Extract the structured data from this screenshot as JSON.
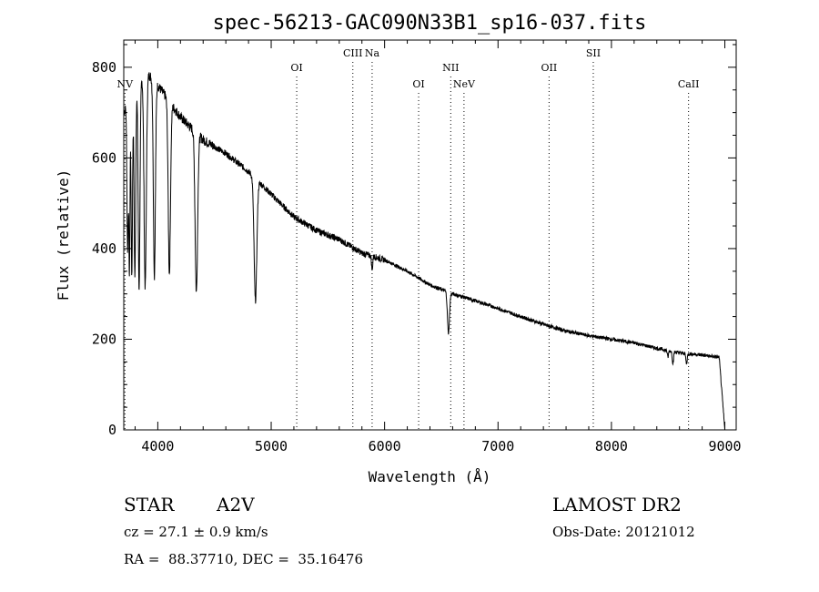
{
  "chart_data": {
    "type": "line",
    "title": "spec-56213-GAC090N33B1_sp16-037.fits",
    "xlabel": "Wavelength (Å)",
    "ylabel": "Flux (relative)",
    "xlim": [
      3700,
      9100
    ],
    "ylim": [
      0,
      860
    ],
    "xticks": [
      4000,
      5000,
      6000,
      7000,
      8000,
      9000
    ],
    "yticks": [
      0,
      200,
      400,
      600,
      800
    ],
    "continuum": {
      "x": [
        3700,
        3800,
        3900,
        4000,
        4200,
        4400,
        4600,
        4800,
        5000,
        5200,
        5400,
        5600,
        5800,
        6000,
        6200,
        6400,
        6600,
        6800,
        7000,
        7200,
        7400,
        7600,
        7800,
        8000,
        8200,
        8400,
        8600,
        8800,
        8950,
        9000
      ],
      "y": [
        700,
        760,
        790,
        760,
        690,
        640,
        610,
        570,
        520,
        470,
        440,
        420,
        390,
        375,
        350,
        320,
        300,
        285,
        268,
        250,
        233,
        218,
        208,
        200,
        192,
        180,
        170,
        165,
        160,
        0
      ]
    },
    "absorption_lines": [
      {
        "x": 3734,
        "depth": 320,
        "width": 6
      },
      {
        "x": 3750,
        "depth": 380,
        "width": 5
      },
      {
        "x": 3771,
        "depth": 400,
        "width": 6
      },
      {
        "x": 3798,
        "depth": 420,
        "width": 7
      },
      {
        "x": 3835,
        "depth": 460,
        "width": 8
      },
      {
        "x": 3889,
        "depth": 470,
        "width": 10
      },
      {
        "x": 3970,
        "depth": 430,
        "width": 9
      },
      {
        "x": 4102,
        "depth": 380,
        "width": 10
      },
      {
        "x": 4340,
        "depth": 350,
        "width": 11
      },
      {
        "x": 4861,
        "depth": 270,
        "width": 12
      },
      {
        "x": 5890,
        "depth": 30,
        "width": 5
      },
      {
        "x": 6563,
        "depth": 90,
        "width": 9
      },
      {
        "x": 8498,
        "depth": 15,
        "width": 5
      },
      {
        "x": 8542,
        "depth": 25,
        "width": 6
      },
      {
        "x": 8662,
        "depth": 22,
        "width": 6
      }
    ],
    "line_markers": [
      {
        "label": "NV",
        "x": 3710,
        "row": 3
      },
      {
        "label": "OI",
        "x": 5225,
        "row": 2
      },
      {
        "label": "CIII",
        "x": 5720,
        "row": 1
      },
      {
        "label": "Na",
        "x": 5890,
        "row": 1
      },
      {
        "label": "OI",
        "x": 6300,
        "row": 3
      },
      {
        "label": "NII",
        "x": 6583,
        "row": 2
      },
      {
        "label": "NeV",
        "x": 6700,
        "row": 3
      },
      {
        "label": "OII",
        "x": 7450,
        "row": 2
      },
      {
        "label": "SII",
        "x": 7840,
        "row": 1
      },
      {
        "label": "CaII",
        "x": 8680,
        "row": 3
      }
    ]
  },
  "info": {
    "object_type": "STAR",
    "subclass": "A2V",
    "survey": "LAMOST DR2",
    "cz_text": "cz = 27.1 ± 0.9 km/s",
    "obs_date": "Obs-Date: 20121012",
    "coords": "RA =  88.37710, DEC =  35.16476"
  }
}
